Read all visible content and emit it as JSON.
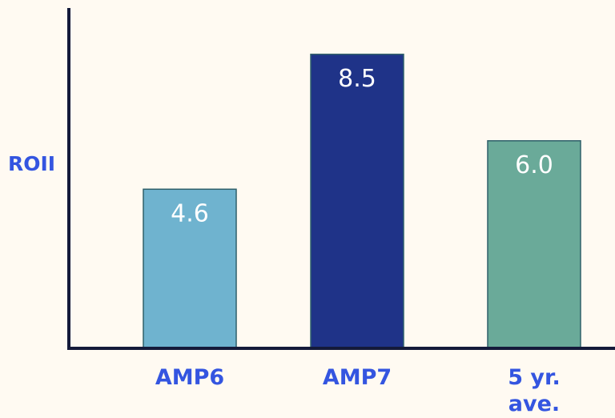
{
  "chart_data": {
    "type": "bar",
    "ylabel": "ROII",
    "xlabel": "",
    "categories": [
      "AMP6",
      "AMP7",
      "5 yr. ave."
    ],
    "category_lines": [
      [
        "AMP6"
      ],
      [
        "AMP7"
      ],
      [
        "5 yr.",
        "ave."
      ]
    ],
    "values": [
      4.6,
      8.5,
      6.0
    ],
    "data_labels": [
      "4.6",
      "8.5",
      "6.0"
    ],
    "bar_colors": [
      "#6fb3cf",
      "#1f3388",
      "#6aaa99"
    ],
    "ylim": [
      0,
      10
    ],
    "grid": false
  },
  "colors": {
    "background": "#fffaf2",
    "axis": "#141a3a",
    "label": "#3455e0"
  }
}
